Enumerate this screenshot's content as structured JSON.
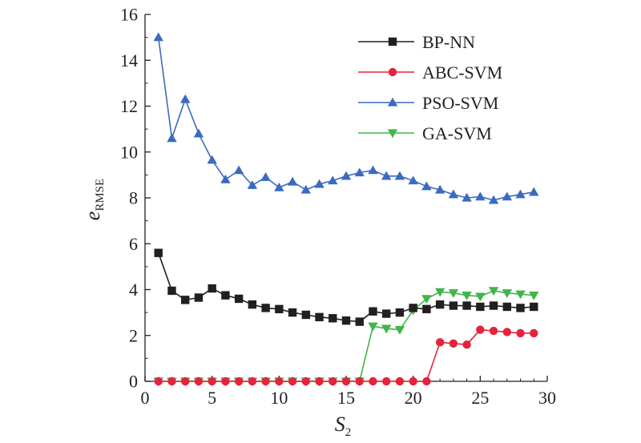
{
  "chart_data": {
    "type": "line",
    "xlabel": {
      "main": "S",
      "sub": "2"
    },
    "ylabel": {
      "main": "e",
      "sub": "RMSE"
    },
    "xlim": [
      0,
      30
    ],
    "ylim": [
      0,
      16
    ],
    "xticks": [
      0,
      5,
      10,
      15,
      20,
      25,
      30
    ],
    "yticks": [
      0,
      2,
      4,
      6,
      8,
      10,
      12,
      14,
      16
    ],
    "grid": false,
    "legend_position": "top-right",
    "x": [
      1,
      2,
      3,
      4,
      5,
      6,
      7,
      8,
      9,
      10,
      11,
      12,
      13,
      14,
      15,
      16,
      17,
      18,
      19,
      20,
      21,
      22,
      23,
      24,
      25,
      26,
      27,
      28,
      29
    ],
    "series": [
      {
        "name": "BP-NN",
        "color": "#231f20",
        "marker": "square",
        "values": [
          5.6,
          3.95,
          3.55,
          3.65,
          4.05,
          3.75,
          3.6,
          3.35,
          3.2,
          3.15,
          3.0,
          2.9,
          2.8,
          2.75,
          2.65,
          2.6,
          3.05,
          2.95,
          3.0,
          3.2,
          3.15,
          3.35,
          3.3,
          3.3,
          3.25,
          3.3,
          3.25,
          3.2,
          3.25
        ]
      },
      {
        "name": "ABC-SVM",
        "color": "#e5233c",
        "marker": "circle",
        "values": [
          0,
          0,
          0,
          0,
          0,
          0,
          0,
          0,
          0,
          0,
          0,
          0,
          0,
          0,
          0,
          0,
          0,
          0,
          0,
          0,
          0,
          1.7,
          1.65,
          1.6,
          2.25,
          2.2,
          2.15,
          2.1,
          2.1
        ]
      },
      {
        "name": "PSO-SVM",
        "color": "#3a6bbf",
        "marker": "triangle-up",
        "values": [
          15.0,
          10.6,
          12.3,
          10.8,
          9.65,
          8.8,
          9.2,
          8.55,
          8.9,
          8.45,
          8.7,
          8.35,
          8.6,
          8.75,
          8.95,
          9.1,
          9.2,
          8.95,
          8.95,
          8.75,
          8.5,
          8.35,
          8.15,
          8.0,
          8.05,
          7.9,
          8.05,
          8.15,
          8.25
        ]
      },
      {
        "name": "GA-SVM",
        "color": "#3fb54a",
        "marker": "triangle-down",
        "values": [
          0,
          0,
          0,
          0,
          0,
          0,
          0,
          0,
          0,
          0,
          0,
          0,
          0,
          0,
          0,
          0,
          2.4,
          2.3,
          2.25,
          3.1,
          3.6,
          3.9,
          3.85,
          3.75,
          3.7,
          3.95,
          3.85,
          3.8,
          3.75
        ]
      }
    ]
  }
}
